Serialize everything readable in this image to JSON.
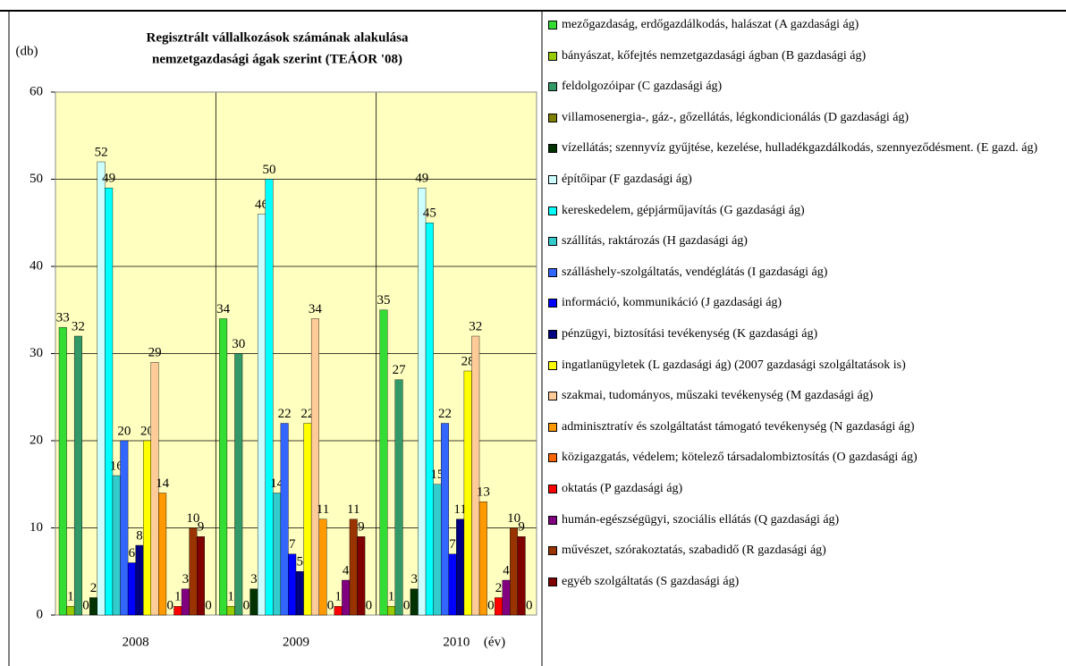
{
  "chart_data": {
    "type": "bar",
    "title": "Regisztrált vállalkozások számának alakulása",
    "subtitle": "nemzetgazdasági ágak szerint (TEÁOR '08)",
    "y_label": "(db)",
    "x_label": "(év)",
    "categories": [
      "2008",
      "2009",
      "2010"
    ],
    "ylim": [
      0,
      60
    ],
    "yticks": [
      0,
      10,
      20,
      30,
      40,
      50,
      60
    ],
    "grid": true,
    "legend": "right",
    "series": [
      {
        "name": "mezőgazdaság, erdőgazdálkodás, halászat  (A gazdasági ág)",
        "color": "#33dd33",
        "values": [
          33,
          34,
          35
        ]
      },
      {
        "name": "bányászat, kőfejtés nemzetgazdasági ágban (B gazdasági ág)",
        "color": "#99cc00",
        "values": [
          1,
          1,
          1
        ]
      },
      {
        "name": "feldolgozóipar (C gazdasági ág)",
        "color": "#339966",
        "values": [
          32,
          30,
          27
        ]
      },
      {
        "name": "villamosenergia-, gáz-, gőzellátás, légkondicionálás (D gazdasági ág)",
        "color": "#808000",
        "values": [
          0,
          0,
          0
        ]
      },
      {
        "name": "vízellátás; szennyvíz gyűjtése, kezelése, hulladékgazdálkodás, szennyeződésment. (E gazd. ág)",
        "color": "#003300",
        "values": [
          2,
          3,
          3
        ]
      },
      {
        "name": "építőipar (F gazdasági ág)",
        "color": "#ccffff",
        "values": [
          52,
          46,
          49
        ]
      },
      {
        "name": "kereskedelem, gépjárműjavítás (G gazdasági ág)",
        "color": "#00ffff",
        "values": [
          49,
          50,
          45
        ]
      },
      {
        "name": "szállítás, raktározás (H gazdasági ág)",
        "color": "#33cccc",
        "values": [
          16,
          14,
          15
        ]
      },
      {
        "name": "szálláshely-szolgáltatás, vendéglátás (I gazdasági ág)",
        "color": "#3366ff",
        "values": [
          20,
          22,
          22
        ]
      },
      {
        "name": "információ, kommunikáció (J gazdasági ág)",
        "color": "#0000ff",
        "values": [
          6,
          7,
          7
        ]
      },
      {
        "name": "pénzügyi, biztosítási tevékenység (K gazdasági ág)",
        "color": "#000080",
        "values": [
          8,
          5,
          11
        ]
      },
      {
        "name": "ingatlanügyletek (L gazdasági ág) (2007 gazdasági szolgáltatások is)",
        "color": "#ffff00",
        "values": [
          20,
          22,
          28
        ]
      },
      {
        "name": "szakmai, tudományos, műszaki tevékenység (M gazdasági ág)",
        "color": "#ffcc99",
        "values": [
          29,
          34,
          32
        ]
      },
      {
        "name": "adminisztratív és szolgáltatást támogató tevékenység (N gazdasági ág)",
        "color": "#ff9900",
        "values": [
          14,
          11,
          13
        ]
      },
      {
        "name": "közigazgatás, védelem; kötelező társadalombiztosítás (O gazdasági ág)",
        "color": "#ff6600",
        "values": [
          0,
          0,
          0
        ]
      },
      {
        "name": "oktatás (P gazdasági ág)",
        "color": "#ff0000",
        "values": [
          1,
          1,
          2
        ]
      },
      {
        "name": "humán-egészségügyi, szociális ellátás (Q gazdasági ág)",
        "color": "#800080",
        "values": [
          3,
          4,
          4
        ]
      },
      {
        "name": "művészet, szórakoztatás, szabadidő (R gazdasági ág)",
        "color": "#993300",
        "values": [
          10,
          11,
          10
        ]
      },
      {
        "name": "egyéb szolgáltatás (S gazdasági ág)",
        "color": "#800000",
        "values": [
          9,
          9,
          9
        ]
      },
      {
        "name": null,
        "color": "#800000",
        "values": [
          0,
          0,
          0
        ]
      }
    ]
  }
}
